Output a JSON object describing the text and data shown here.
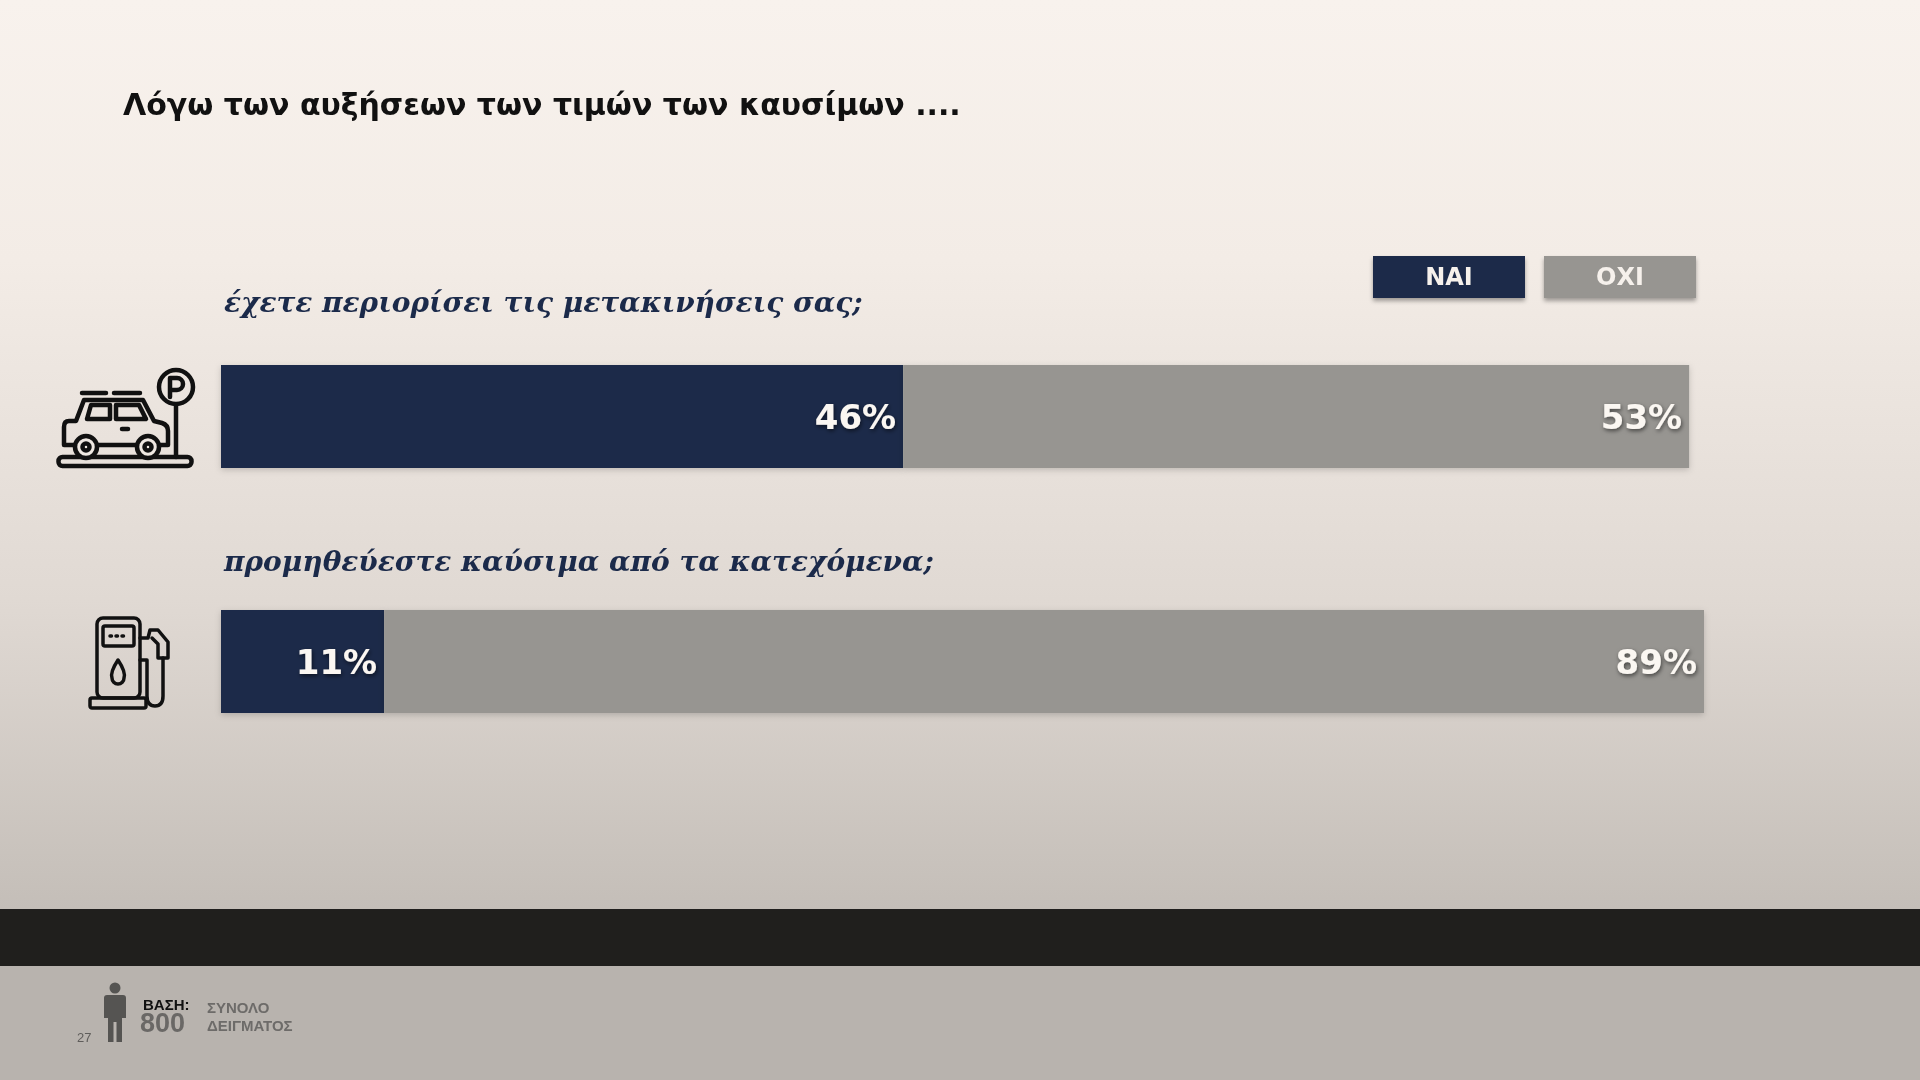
{
  "chart_data": {
    "type": "bar",
    "orientation": "horizontal",
    "stacked": true,
    "title": "Λόγω των αυξήσεων των τιμών των καυσίμων ....",
    "categories": [
      "έχετε περιορίσει τις μετακινήσεις σας;",
      "προμηθεύεστε καύσιμα από τα κατεχόμενα;"
    ],
    "series": [
      {
        "name": "ΝΑΙ",
        "color": "#1b2a4a",
        "values": [
          46,
          11
        ],
        "value_labels": [
          "46%",
          "11%"
        ]
      },
      {
        "name": "ΟΧΙ",
        "color": "#979591",
        "values": [
          53,
          89
        ],
        "value_labels": [
          "53%",
          "89%"
        ]
      }
    ],
    "legend": "top right",
    "tick_labels": "y",
    "annotations": [
      "ΒΑΣΗ:",
      "800",
      "ΣΥΝΟΛΟ ΔΕΙΓΜΑΤΟΣ",
      "27"
    ]
  }
}
